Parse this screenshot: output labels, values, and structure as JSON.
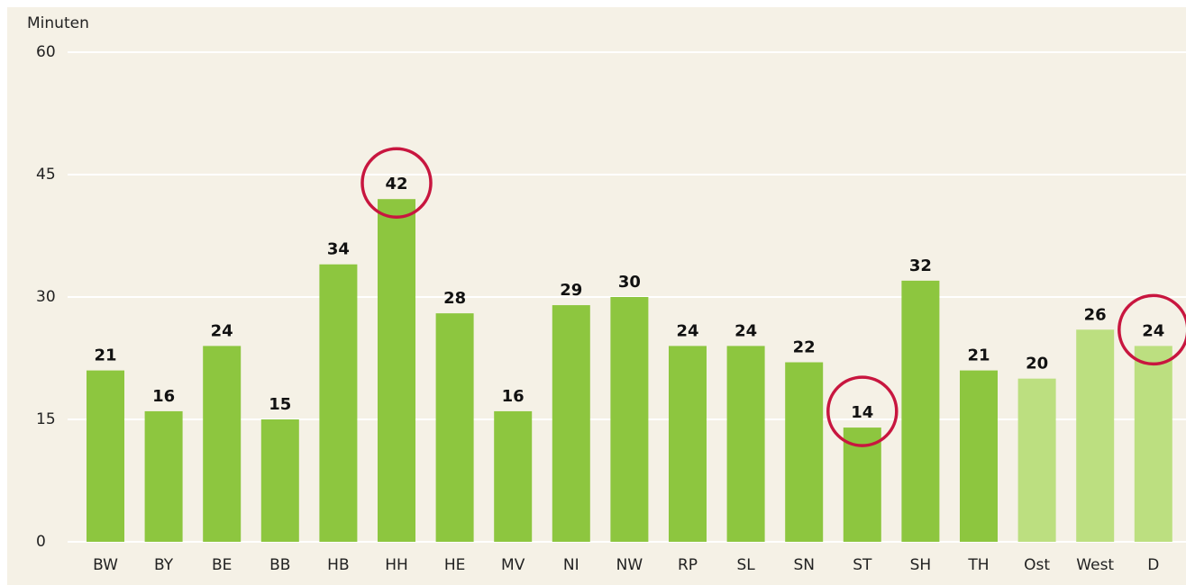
{
  "chart_data": {
    "type": "bar",
    "y_axis_label": "Minuten",
    "categories": [
      "BW",
      "BY",
      "BE",
      "BB",
      "HB",
      "HH",
      "HE",
      "MV",
      "NI",
      "NW",
      "RP",
      "SL",
      "SN",
      "ST",
      "SH",
      "TH",
      "Ost",
      "West",
      "D"
    ],
    "values": [
      21,
      16,
      24,
      15,
      34,
      42,
      28,
      16,
      29,
      30,
      24,
      24,
      22,
      14,
      32,
      21,
      20,
      26,
      24
    ],
    "colors": [
      "#8dc63f",
      "#8dc63f",
      "#8dc63f",
      "#8dc63f",
      "#8dc63f",
      "#8dc63f",
      "#8dc63f",
      "#8dc63f",
      "#8dc63f",
      "#8dc63f",
      "#8dc63f",
      "#8dc63f",
      "#8dc63f",
      "#8dc63f",
      "#8dc63f",
      "#8dc63f",
      "#bcdf80",
      "#bcdf80",
      "#bcdf80"
    ],
    "category_label_colors": [
      "#222",
      "#222",
      "#222",
      "#222",
      "#222",
      "#222",
      "#222",
      "#222",
      "#222",
      "#222",
      "#222",
      "#222",
      "#222",
      "#222",
      "#222",
      "#222",
      "#9a9a9a",
      "#9a9a9a",
      "#9a9a9a"
    ],
    "circled": [
      5,
      13,
      18
    ],
    "circle_color": "#c8163f",
    "ylim": [
      0,
      60
    ],
    "yticks": [
      0,
      15,
      30,
      45,
      60
    ],
    "grid": true
  }
}
